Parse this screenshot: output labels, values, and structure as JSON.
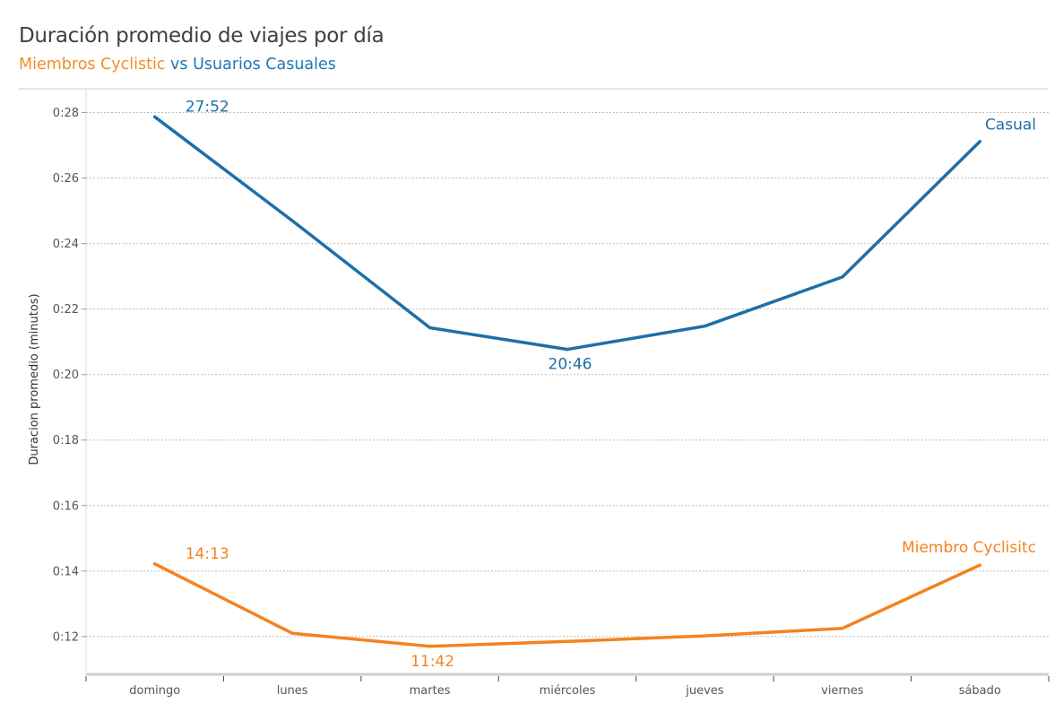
{
  "header": {
    "title": "Duración promedio de viajes por día",
    "subtitle_part1": "Miembros  Cyclistic",
    "subtitle_part2": " vs",
    "subtitle_part3": " Usuarios Casuales"
  },
  "colors": {
    "casual": "#1f6fa8",
    "member": "#f5821f"
  },
  "chart_data": {
    "type": "line",
    "ylabel": "Duracion promedio (minutos)",
    "xlabel": "",
    "categories": [
      "domingo",
      "lunes",
      "martes",
      "miércoles",
      "jueves",
      "viernes",
      "sábado"
    ],
    "y_unit": "minutes",
    "ylim": [
      10.9,
      28.7
    ],
    "y_ticks": [
      12,
      14,
      16,
      18,
      20,
      22,
      24,
      26,
      28
    ],
    "y_tick_labels": [
      "0:12",
      "0:14",
      "0:16",
      "0:18",
      "0:20",
      "0:22",
      "0:24",
      "0:26",
      "0:28"
    ],
    "grid": true,
    "series": [
      {
        "name": "Casual",
        "color": "#1f6fa8",
        "values": [
          27.87,
          24.7,
          21.43,
          20.77,
          21.48,
          22.98,
          27.12
        ],
        "data_labels": [
          {
            "index": 0,
            "text": "27:52"
          },
          {
            "index": 3,
            "text": "20:46"
          }
        ]
      },
      {
        "name": "Miembro Cyclisitc",
        "color": "#f5821f",
        "values": [
          14.22,
          12.1,
          11.7,
          11.85,
          12.02,
          12.25,
          14.18
        ],
        "data_labels": [
          {
            "index": 0,
            "text": "14:13"
          },
          {
            "index": 2,
            "text": "11:42"
          }
        ]
      }
    ]
  }
}
